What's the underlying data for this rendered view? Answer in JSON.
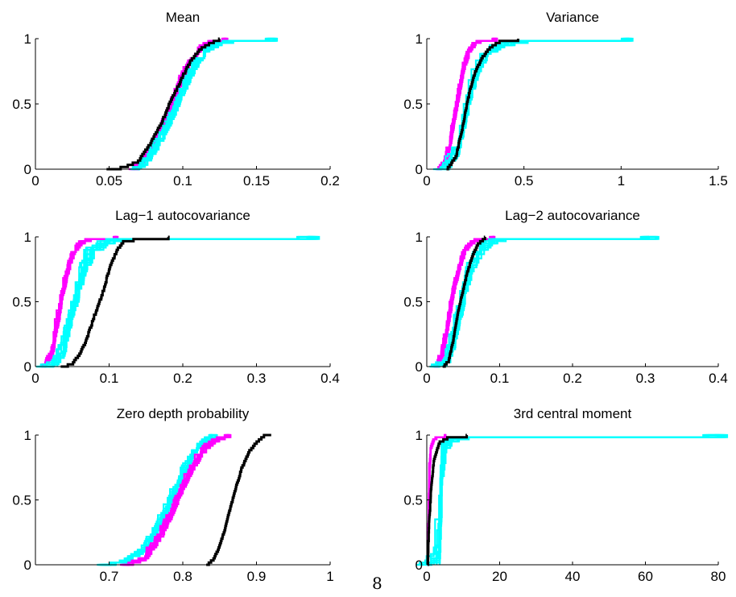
{
  "page_number": "8",
  "colors": {
    "magenta": "#ff00ff",
    "cyan": "#00ffff",
    "black": "#000000"
  },
  "chart_data": [
    {
      "type": "line",
      "title": "Mean",
      "xlim": [
        0,
        0.2
      ],
      "ylim": [
        0,
        1
      ],
      "xticks": [
        "0",
        "0.05",
        "0.1",
        "0.15",
        "0.2"
      ],
      "xtick_values": [
        0,
        0.05,
        0.1,
        0.15,
        0.2
      ],
      "yticks": [
        "0",
        "0.5",
        "1"
      ],
      "series": [
        {
          "color": "magenta",
          "count": 10,
          "points": [
            [
              0.066,
              0
            ],
            [
              0.075,
              0.1
            ],
            [
              0.082,
              0.25
            ],
            [
              0.088,
              0.4
            ],
            [
              0.093,
              0.55
            ],
            [
              0.098,
              0.7
            ],
            [
              0.104,
              0.83
            ],
            [
              0.11,
              0.92
            ],
            [
              0.118,
              0.98
            ],
            [
              0.128,
              1
            ]
          ]
        },
        {
          "color": "cyan",
          "count": 10,
          "points": [
            [
              0.068,
              0
            ],
            [
              0.076,
              0.1
            ],
            [
              0.084,
              0.25
            ],
            [
              0.09,
              0.4
            ],
            [
              0.096,
              0.55
            ],
            [
              0.102,
              0.7
            ],
            [
              0.108,
              0.83
            ],
            [
              0.115,
              0.92
            ],
            [
              0.125,
              0.98
            ],
            [
              0.16,
              1
            ]
          ]
        },
        {
          "color": "black",
          "count": 1,
          "points": [
            [
              0.048,
              0
            ],
            [
              0.06,
              0.02
            ],
            [
              0.07,
              0.07
            ],
            [
              0.078,
              0.2
            ],
            [
              0.085,
              0.35
            ],
            [
              0.09,
              0.48
            ],
            [
              0.095,
              0.6
            ],
            [
              0.1,
              0.72
            ],
            [
              0.106,
              0.85
            ],
            [
              0.112,
              0.93
            ],
            [
              0.118,
              0.97
            ],
            [
              0.125,
              1
            ]
          ]
        }
      ]
    },
    {
      "type": "line",
      "title": "Variance",
      "xlim": [
        0,
        1.5
      ],
      "ylim": [
        0,
        1
      ],
      "xticks": [
        "0",
        "0.5",
        "1",
        "1.5"
      ],
      "xtick_values": [
        0,
        0.5,
        1,
        1.5
      ],
      "yticks": [
        "0",
        "0.5",
        "1"
      ],
      "series": [
        {
          "color": "magenta",
          "count": 10,
          "points": [
            [
              0.06,
              0
            ],
            [
              0.1,
              0.1
            ],
            [
              0.13,
              0.35
            ],
            [
              0.155,
              0.55
            ],
            [
              0.18,
              0.75
            ],
            [
              0.21,
              0.9
            ],
            [
              0.25,
              0.98
            ],
            [
              0.35,
              1
            ]
          ]
        },
        {
          "color": "cyan",
          "count": 10,
          "points": [
            [
              0.07,
              0
            ],
            [
              0.12,
              0.1
            ],
            [
              0.16,
              0.35
            ],
            [
              0.19,
              0.55
            ],
            [
              0.23,
              0.75
            ],
            [
              0.28,
              0.88
            ],
            [
              0.36,
              0.95
            ],
            [
              0.5,
              0.99
            ],
            [
              1.04,
              1
            ]
          ]
        },
        {
          "color": "black",
          "count": 1,
          "points": [
            [
              0.1,
              0
            ],
            [
              0.15,
              0.1
            ],
            [
              0.18,
              0.3
            ],
            [
              0.2,
              0.45
            ],
            [
              0.22,
              0.6
            ],
            [
              0.25,
              0.75
            ],
            [
              0.28,
              0.85
            ],
            [
              0.32,
              0.93
            ],
            [
              0.38,
              0.99
            ],
            [
              0.47,
              1
            ]
          ]
        }
      ]
    },
    {
      "type": "line",
      "title": "Lag−1 autocovariance",
      "xlim": [
        0,
        0.4
      ],
      "ylim": [
        0,
        1
      ],
      "xticks": [
        "0",
        "0.1",
        "0.2",
        "0.3",
        "0.4"
      ],
      "xtick_values": [
        0,
        0.1,
        0.2,
        0.3,
        0.4
      ],
      "yticks": [
        "0",
        "0.5",
        "1"
      ],
      "series": [
        {
          "color": "magenta",
          "count": 10,
          "points": [
            [
              0.012,
              0
            ],
            [
              0.02,
              0.1
            ],
            [
              0.028,
              0.35
            ],
            [
              0.034,
              0.55
            ],
            [
              0.042,
              0.75
            ],
            [
              0.05,
              0.88
            ],
            [
              0.06,
              0.96
            ],
            [
              0.075,
              0.99
            ],
            [
              0.11,
              1
            ]
          ]
        },
        {
          "color": "cyan",
          "count": 10,
          "points": [
            [
              0.015,
              0
            ],
            [
              0.025,
              0.1
            ],
            [
              0.035,
              0.35
            ],
            [
              0.045,
              0.55
            ],
            [
              0.055,
              0.75
            ],
            [
              0.068,
              0.88
            ],
            [
              0.085,
              0.95
            ],
            [
              0.11,
              0.99
            ],
            [
              0.37,
              1
            ]
          ]
        },
        {
          "color": "black",
          "count": 1,
          "points": [
            [
              0.035,
              0
            ],
            [
              0.05,
              0.03
            ],
            [
              0.06,
              0.1
            ],
            [
              0.07,
              0.22
            ],
            [
              0.08,
              0.4
            ],
            [
              0.09,
              0.55
            ],
            [
              0.1,
              0.75
            ],
            [
              0.11,
              0.9
            ],
            [
              0.12,
              0.97
            ],
            [
              0.14,
              0.99
            ],
            [
              0.18,
              1
            ]
          ]
        }
      ]
    },
    {
      "type": "line",
      "title": "Lag−2 autocovariance",
      "xlim": [
        0,
        0.4
      ],
      "ylim": [
        0,
        1
      ],
      "xticks": [
        "0",
        "0.1",
        "0.2",
        "0.3",
        "0.4"
      ],
      "xtick_values": [
        0,
        0.1,
        0.2,
        0.3,
        0.4
      ],
      "yticks": [
        "0",
        "0.5",
        "1"
      ],
      "series": [
        {
          "color": "magenta",
          "count": 10,
          "points": [
            [
              0.012,
              0
            ],
            [
              0.02,
              0.1
            ],
            [
              0.028,
              0.35
            ],
            [
              0.034,
              0.55
            ],
            [
              0.042,
              0.75
            ],
            [
              0.05,
              0.88
            ],
            [
              0.06,
              0.96
            ],
            [
              0.07,
              0.99
            ],
            [
              0.09,
              1
            ]
          ]
        },
        {
          "color": "cyan",
          "count": 10,
          "points": [
            [
              0.015,
              0
            ],
            [
              0.024,
              0.1
            ],
            [
              0.034,
              0.35
            ],
            [
              0.042,
              0.55
            ],
            [
              0.052,
              0.75
            ],
            [
              0.065,
              0.88
            ],
            [
              0.08,
              0.95
            ],
            [
              0.1,
              0.99
            ],
            [
              0.305,
              1
            ]
          ]
        },
        {
          "color": "black",
          "count": 1,
          "points": [
            [
              0.022,
              0
            ],
            [
              0.03,
              0.05
            ],
            [
              0.036,
              0.2
            ],
            [
              0.042,
              0.4
            ],
            [
              0.048,
              0.55
            ],
            [
              0.055,
              0.72
            ],
            [
              0.062,
              0.85
            ],
            [
              0.07,
              0.95
            ],
            [
              0.08,
              1
            ]
          ]
        }
      ]
    },
    {
      "type": "line",
      "title": "Zero depth probability",
      "xlim": [
        0.6,
        1
      ],
      "ylim": [
        0,
        1
      ],
      "xticks": [
        "0.7",
        "0.8",
        "0.9",
        "1"
      ],
      "xtick_values": [
        0.7,
        0.8,
        0.9,
        1
      ],
      "yticks": [
        "0",
        "0.5",
        "1"
      ],
      "series": [
        {
          "color": "cyan",
          "count": 10,
          "points": [
            [
              0.69,
              0
            ],
            [
              0.72,
              0.03
            ],
            [
              0.745,
              0.12
            ],
            [
              0.765,
              0.3
            ],
            [
              0.78,
              0.5
            ],
            [
              0.795,
              0.68
            ],
            [
              0.81,
              0.85
            ],
            [
              0.825,
              0.95
            ],
            [
              0.84,
              1
            ]
          ]
        },
        {
          "color": "magenta",
          "count": 10,
          "points": [
            [
              0.72,
              0
            ],
            [
              0.745,
              0.05
            ],
            [
              0.765,
              0.2
            ],
            [
              0.782,
              0.4
            ],
            [
              0.795,
              0.58
            ],
            [
              0.81,
              0.75
            ],
            [
              0.825,
              0.88
            ],
            [
              0.84,
              0.96
            ],
            [
              0.86,
              1
            ]
          ]
        },
        {
          "color": "black",
          "count": 1,
          "points": [
            [
              0.832,
              0
            ],
            [
              0.842,
              0.05
            ],
            [
              0.85,
              0.15
            ],
            [
              0.858,
              0.3
            ],
            [
              0.865,
              0.45
            ],
            [
              0.872,
              0.6
            ],
            [
              0.88,
              0.75
            ],
            [
              0.89,
              0.88
            ],
            [
              0.9,
              0.95
            ],
            [
              0.91,
              1
            ],
            [
              0.92,
              1
            ]
          ]
        }
      ]
    },
    {
      "type": "line",
      "title": "3rd central moment",
      "xlim": [
        0,
        80
      ],
      "ylim": [
        0,
        1
      ],
      "xticks": [
        "0",
        "20",
        "40",
        "60",
        "80"
      ],
      "xtick_values": [
        0,
        20,
        40,
        60,
        80
      ],
      "yticks": [
        "0",
        "0.5",
        "1"
      ],
      "series": [
        {
          "color": "magenta",
          "count": 10,
          "points": [
            [
              0.1,
              0
            ],
            [
              0.3,
              0.3
            ],
            [
              0.6,
              0.7
            ],
            [
              1,
              0.9
            ],
            [
              2,
              0.98
            ],
            [
              5,
              1
            ]
          ]
        },
        {
          "color": "cyan",
          "count": 10,
          "points": [
            [
              0.2,
              0
            ],
            [
              0.5,
              0.3
            ],
            [
              1,
              0.65
            ],
            [
              2,
              0.88
            ],
            [
              4,
              0.96
            ],
            [
              10,
              0.99
            ],
            [
              30,
              0.995
            ],
            [
              79,
              1
            ]
          ]
        },
        {
          "color": "black",
          "count": 1,
          "points": [
            [
              0.3,
              0
            ],
            [
              0.6,
              0.3
            ],
            [
              1.2,
              0.6
            ],
            [
              2,
              0.82
            ],
            [
              3.5,
              0.95
            ],
            [
              6,
              0.99
            ],
            [
              11,
              1
            ]
          ]
        }
      ]
    }
  ]
}
